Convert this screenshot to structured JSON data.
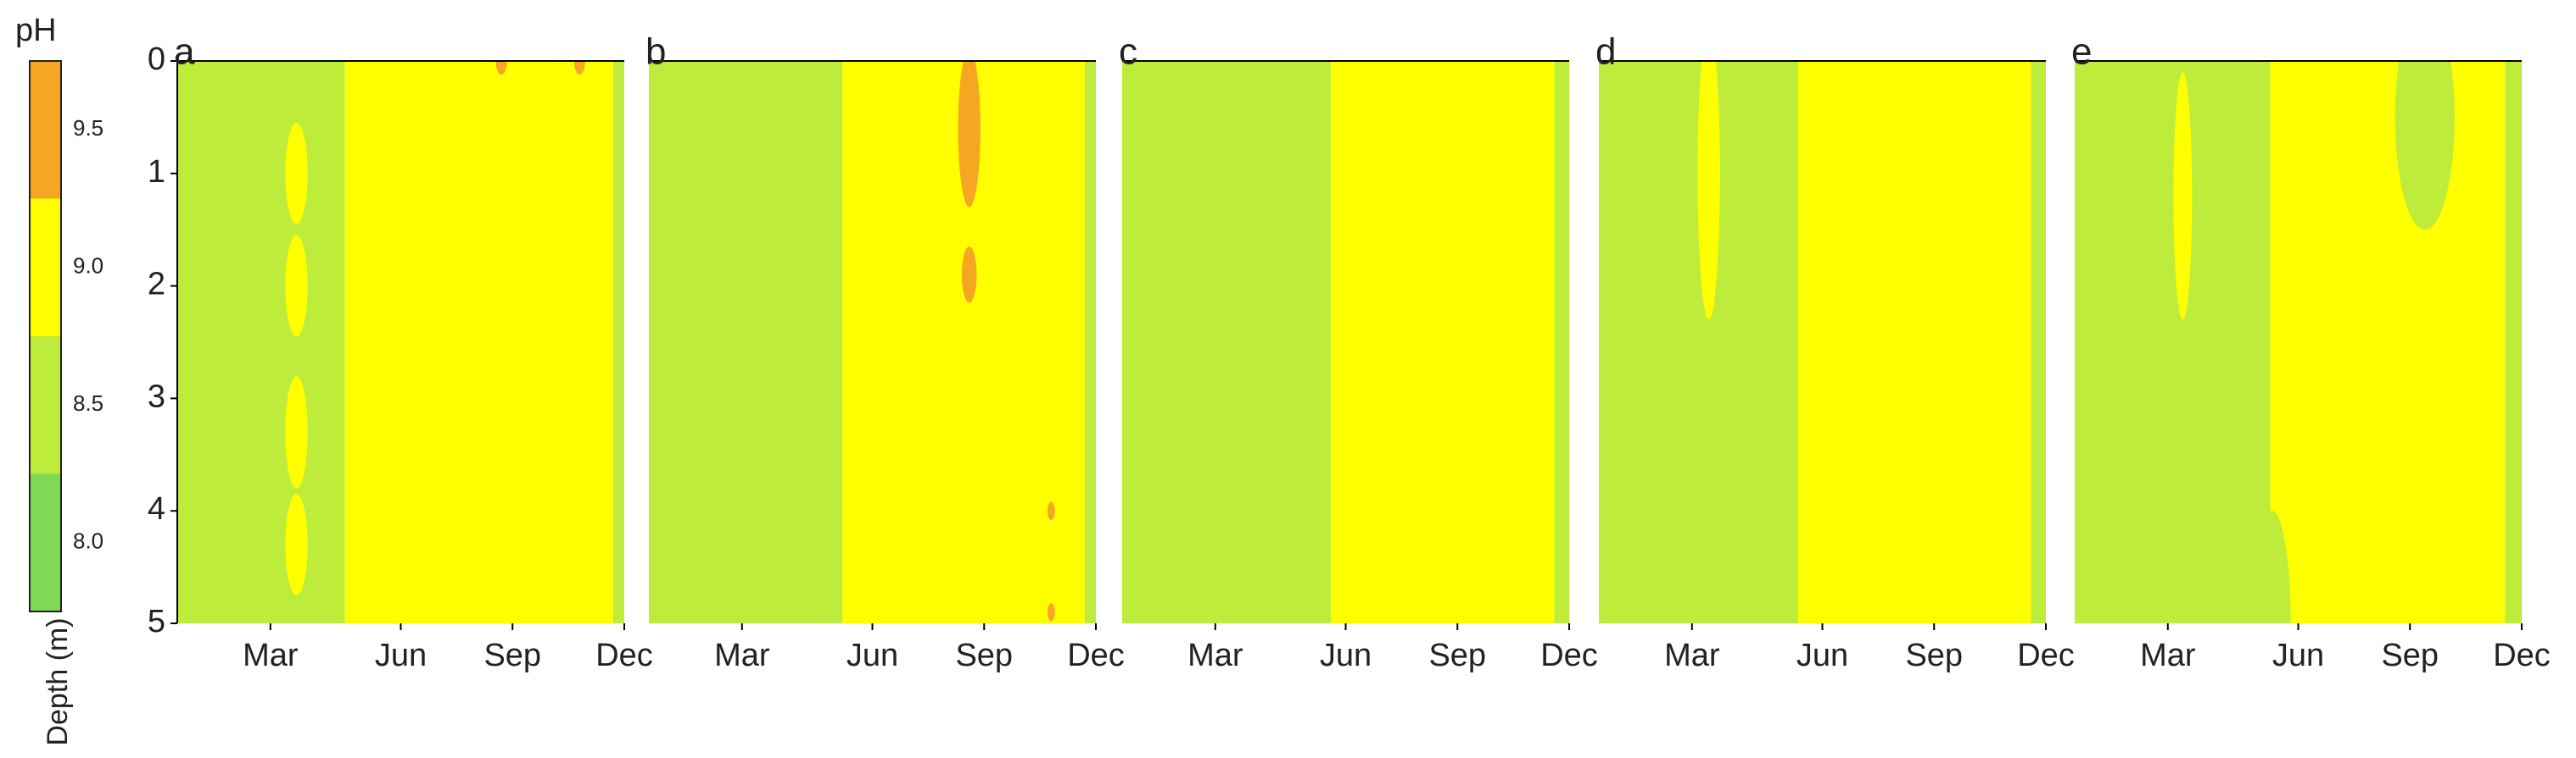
{
  "chart_data": [
    {
      "type": "colorbar",
      "title": "pH",
      "levels": [
        7.75,
        8.25,
        8.75,
        9.25,
        9.75
      ],
      "colors": [
        "#7ed957",
        "#bdec3a",
        "#ffff00",
        "#f5a623"
      ],
      "ylim": [
        7.75,
        9.75
      ],
      "yticks": [
        {
          "value": 8,
          "label": "8.0"
        },
        {
          "value": 8.5,
          "label": "8.5"
        },
        {
          "value": 9,
          "label": "9.0"
        },
        {
          "value": 9.5,
          "label": "9.5"
        }
      ]
    },
    {
      "type": "contour",
      "label": "a",
      "ylabel": "Depth (m)",
      "xlim": [
        0,
        12
      ],
      "xticks": [
        {
          "value": 2.5,
          "label": "Mar"
        },
        {
          "value": 6,
          "label": "Jun"
        },
        {
          "value": 9,
          "label": "Sep"
        },
        {
          "value": 12,
          "label": "Dec"
        }
      ],
      "ylim": [
        0,
        5
      ],
      "yticks": [
        0,
        1,
        2,
        3,
        4,
        5
      ],
      "zones": [
        {
          "x0": 0,
          "x1": 4.5,
          "value": 8.5
        },
        {
          "x0": 4.5,
          "x1": 11.7,
          "value": 9
        },
        {
          "x0": 11.7,
          "x1": 12,
          "value": 8.5
        }
      ],
      "patches": [
        {
          "x": 3.2,
          "y": 1,
          "rx": 0.3,
          "ry": 0.45,
          "value": 9
        },
        {
          "x": 3.2,
          "y": 2,
          "rx": 0.3,
          "ry": 0.45,
          "value": 9
        },
        {
          "x": 3.2,
          "y": 3.3,
          "rx": 0.3,
          "ry": 0.5,
          "value": 9
        },
        {
          "x": 3.2,
          "y": 4.3,
          "rx": 0.3,
          "ry": 0.45,
          "value": 9
        },
        {
          "x": 8.7,
          "y": 0,
          "rx": 0.15,
          "ry": 0.12,
          "value": 9.5
        },
        {
          "x": 10.8,
          "y": 0,
          "rx": 0.15,
          "ry": 0.12,
          "value": 9.5
        }
      ]
    },
    {
      "type": "contour",
      "label": "b",
      "xlim": [
        0,
        12
      ],
      "xticks": [
        {
          "value": 2.5,
          "label": "Mar"
        },
        {
          "value": 6,
          "label": "Jun"
        },
        {
          "value": 9,
          "label": "Sep"
        },
        {
          "value": 12,
          "label": "Dec"
        }
      ],
      "ylim": [
        0,
        5
      ],
      "zones": [
        {
          "x0": 0,
          "x1": 5.2,
          "value": 8.5
        },
        {
          "x0": 5.2,
          "x1": 11.7,
          "value": 9
        },
        {
          "x0": 11.7,
          "x1": 12,
          "value": 8.5
        }
      ],
      "patches": [
        {
          "x": 8.6,
          "y": 0.6,
          "rx": 0.3,
          "ry": 0.7,
          "value": 9.5
        },
        {
          "x": 8.6,
          "y": 1.9,
          "rx": 0.2,
          "ry": 0.25,
          "value": 9.5
        },
        {
          "x": 10.8,
          "y": 4,
          "rx": 0.1,
          "ry": 0.08,
          "value": 9.5
        },
        {
          "x": 10.8,
          "y": 4.9,
          "rx": 0.1,
          "ry": 0.08,
          "value": 9.5
        }
      ]
    },
    {
      "type": "contour",
      "label": "c",
      "xlim": [
        0,
        12
      ],
      "xticks": [
        {
          "value": 2.5,
          "label": "Mar"
        },
        {
          "value": 6,
          "label": "Jun"
        },
        {
          "value": 9,
          "label": "Sep"
        },
        {
          "value": 12,
          "label": "Dec"
        }
      ],
      "ylim": [
        0,
        5
      ],
      "zones": [
        {
          "x0": 0,
          "x1": 5.6,
          "value": 8.5
        },
        {
          "x0": 5.6,
          "x1": 11.6,
          "value": 9
        },
        {
          "x0": 11.6,
          "x1": 12,
          "value": 8.5
        }
      ],
      "patches": []
    },
    {
      "type": "contour",
      "label": "d",
      "xlim": [
        0,
        12
      ],
      "xticks": [
        {
          "value": 2.5,
          "label": "Mar"
        },
        {
          "value": 6,
          "label": "Jun"
        },
        {
          "value": 9,
          "label": "Sep"
        },
        {
          "value": 12,
          "label": "Dec"
        }
      ],
      "ylim": [
        0,
        5
      ],
      "zones": [
        {
          "x0": 0,
          "x1": 5.35,
          "value": 8.5
        },
        {
          "x0": 5.35,
          "x1": 11.6,
          "value": 9
        },
        {
          "x0": 11.6,
          "x1": 12,
          "value": 8.5
        }
      ],
      "patches": [
        {
          "x": 2.95,
          "y": 1,
          "rx": 0.3,
          "ry": 1.3,
          "value": 9
        }
      ]
    },
    {
      "type": "contour",
      "label": "e",
      "xlim": [
        0,
        12
      ],
      "xticks": [
        {
          "value": 2.5,
          "label": "Mar"
        },
        {
          "value": 6,
          "label": "Jun"
        },
        {
          "value": 9,
          "label": "Sep"
        },
        {
          "value": 12,
          "label": "Dec"
        }
      ],
      "ylim": [
        0,
        5
      ],
      "zones": [
        {
          "x0": 0,
          "x1": 5.25,
          "value": 8.5
        },
        {
          "x0": 5.25,
          "x1": 11.55,
          "value": 9
        },
        {
          "x0": 11.55,
          "x1": 12,
          "value": 8.5
        }
      ],
      "patches": [
        {
          "x": 2.9,
          "y": 1.2,
          "rx": 0.25,
          "ry": 1.1,
          "value": 9
        },
        {
          "x": 9.4,
          "y": 0.5,
          "rx": 0.8,
          "ry": 1.0,
          "value": 8.5
        },
        {
          "x": 5.3,
          "y": 5,
          "rx": 0.5,
          "ry": 1.0,
          "value": 8.5
        }
      ]
    }
  ]
}
